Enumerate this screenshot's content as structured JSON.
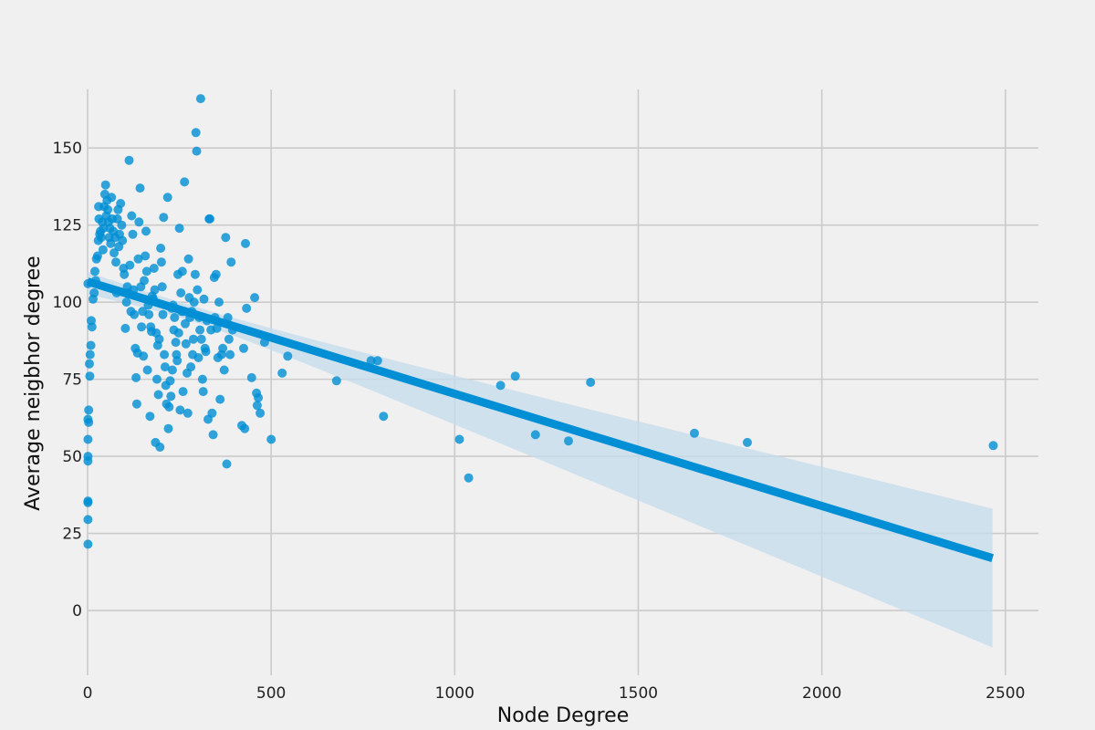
{
  "chart_data": {
    "type": "scatter",
    "title": "",
    "xlabel": "Node Degree",
    "ylabel": "Average neigbhor degree",
    "xlim": [
      0,
      2590
    ],
    "ylim": [
      -21,
      169
    ],
    "xticks": [
      0,
      500,
      1000,
      1500,
      2000,
      2500
    ],
    "yticks": [
      0,
      25,
      50,
      75,
      100,
      125,
      150
    ],
    "grid": true,
    "colors": {
      "points": "#008fd5",
      "regression_line": "#008fd5",
      "confidence_band": "#c6dced",
      "grid": "#cbcbcb",
      "background": "#f0f0f0"
    },
    "regression": {
      "x_range": [
        0,
        2465
      ],
      "intercept": 106.7,
      "slope": -0.0364,
      "ci_upper_at_end": 33,
      "ci_lower_at_end": -12
    },
    "series": [
      {
        "points": [
          [
            1,
            106
          ],
          [
            1,
            62
          ],
          [
            1,
            55.5
          ],
          [
            1,
            50
          ],
          [
            1,
            48.5
          ],
          [
            1,
            35.5
          ],
          [
            1,
            35
          ],
          [
            1,
            29.5
          ],
          [
            1,
            21.5
          ],
          [
            3,
            65
          ],
          [
            3,
            61
          ],
          [
            5,
            80
          ],
          [
            6,
            76
          ],
          [
            7,
            83
          ],
          [
            9,
            86
          ],
          [
            10,
            94
          ],
          [
            12,
            92
          ],
          [
            15,
            101
          ],
          [
            18,
            103
          ],
          [
            20,
            110
          ],
          [
            22,
            107
          ],
          [
            24,
            114
          ],
          [
            27,
            115
          ],
          [
            29,
            120
          ],
          [
            30,
            131
          ],
          [
            31,
            127
          ],
          [
            33,
            122
          ],
          [
            35,
            123
          ],
          [
            37,
            121
          ],
          [
            40,
            126
          ],
          [
            42,
            117
          ],
          [
            43,
            124
          ],
          [
            45,
            131
          ],
          [
            47,
            135
          ],
          [
            49,
            138
          ],
          [
            51,
            128
          ],
          [
            53,
            133
          ],
          [
            55,
            130
          ],
          [
            57,
            126
          ],
          [
            59,
            121
          ],
          [
            61,
            124
          ],
          [
            63,
            119
          ],
          [
            65,
            134
          ],
          [
            67,
            127
          ],
          [
            70,
            123
          ],
          [
            72,
            116
          ],
          [
            75,
            121
          ],
          [
            77,
            113
          ],
          [
            79,
            103
          ],
          [
            81,
            127
          ],
          [
            83,
            130
          ],
          [
            85,
            118
          ],
          [
            87,
            122
          ],
          [
            90,
            132
          ],
          [
            93,
            125
          ],
          [
            95,
            120
          ],
          [
            98,
            111
          ],
          [
            100,
            109
          ],
          [
            103,
            91.5
          ],
          [
            106,
            100
          ],
          [
            108,
            105
          ],
          [
            110,
            103
          ],
          [
            113,
            146
          ],
          [
            115,
            112
          ],
          [
            118,
            97
          ],
          [
            120,
            128
          ],
          [
            123,
            122
          ],
          [
            125,
            104
          ],
          [
            127,
            96
          ],
          [
            130,
            85
          ],
          [
            132,
            75.5
          ],
          [
            134,
            67
          ],
          [
            136,
            83.5
          ],
          [
            138,
            114
          ],
          [
            140,
            126
          ],
          [
            143,
            137
          ],
          [
            145,
            105
          ],
          [
            147,
            92
          ],
          [
            150,
            97
          ],
          [
            152,
            82.5
          ],
          [
            154,
            107
          ],
          [
            157,
            115
          ],
          [
            159,
            123
          ],
          [
            161,
            110
          ],
          [
            163,
            78
          ],
          [
            165,
            99
          ],
          [
            167,
            96
          ],
          [
            170,
            63
          ],
          [
            172,
            92
          ],
          [
            174,
            90.5
          ],
          [
            176,
            102
          ],
          [
            179,
            101
          ],
          [
            181,
            111
          ],
          [
            183,
            104
          ],
          [
            185,
            54.5
          ],
          [
            187,
            90
          ],
          [
            189,
            75
          ],
          [
            191,
            86
          ],
          [
            193,
            70
          ],
          [
            195,
            88
          ],
          [
            197,
            53
          ],
          [
            199,
            117.5
          ],
          [
            201,
            113
          ],
          [
            203,
            105
          ],
          [
            205,
            96
          ],
          [
            207,
            127.5
          ],
          [
            209,
            83
          ],
          [
            211,
            79
          ],
          [
            213,
            73
          ],
          [
            215,
            67
          ],
          [
            218,
            134
          ],
          [
            220,
            59
          ],
          [
            222,
            66
          ],
          [
            225,
            74.5
          ],
          [
            227,
            69.5
          ],
          [
            229,
            98
          ],
          [
            231,
            78
          ],
          [
            233,
            99
          ],
          [
            235,
            91
          ],
          [
            237,
            95
          ],
          [
            240,
            87
          ],
          [
            242,
            83
          ],
          [
            244,
            81
          ],
          [
            246,
            109
          ],
          [
            248,
            90
          ],
          [
            250,
            124
          ],
          [
            252,
            65
          ],
          [
            254,
            103
          ],
          [
            256,
            97
          ],
          [
            258,
            110
          ],
          [
            260,
            71
          ],
          [
            262,
            97
          ],
          [
            264,
            139
          ],
          [
            266,
            93
          ],
          [
            268,
            86.5
          ],
          [
            271,
            77
          ],
          [
            273,
            64
          ],
          [
            275,
            114
          ],
          [
            277,
            101.5
          ],
          [
            279,
            95
          ],
          [
            281,
            79
          ],
          [
            284,
            97
          ],
          [
            286,
            83
          ],
          [
            288,
            88
          ],
          [
            290,
            100
          ],
          [
            293,
            109
          ],
          [
            295,
            155
          ],
          [
            297,
            149
          ],
          [
            299,
            104
          ],
          [
            302,
            82
          ],
          [
            304,
            95
          ],
          [
            306,
            91
          ],
          [
            308,
            166
          ],
          [
            310,
            88
          ],
          [
            313,
            75
          ],
          [
            315,
            71
          ],
          [
            317,
            101
          ],
          [
            320,
            85
          ],
          [
            322,
            84
          ],
          [
            325,
            94
          ],
          [
            328,
            62
          ],
          [
            331,
            127
          ],
          [
            333,
            127
          ],
          [
            336,
            91
          ],
          [
            339,
            64
          ],
          [
            342,
            57
          ],
          [
            345,
            108
          ],
          [
            347,
            95
          ],
          [
            350,
            109
          ],
          [
            352,
            91.5
          ],
          [
            355,
            82
          ],
          [
            358,
            100
          ],
          [
            361,
            68.5
          ],
          [
            365,
            83
          ],
          [
            368,
            85
          ],
          [
            372,
            78
          ],
          [
            376,
            121
          ],
          [
            379,
            47.5
          ],
          [
            382,
            95
          ],
          [
            385,
            88
          ],
          [
            388,
            83
          ],
          [
            391,
            113
          ],
          [
            395,
            91
          ],
          [
            420,
            60
          ],
          [
            425,
            85
          ],
          [
            428,
            59
          ],
          [
            430,
            119
          ],
          [
            433,
            98
          ],
          [
            447,
            75.5
          ],
          [
            455,
            101.5
          ],
          [
            460,
            70.5
          ],
          [
            462,
            66.5
          ],
          [
            465,
            69
          ],
          [
            470,
            64
          ],
          [
            482,
            87
          ],
          [
            500,
            55.5
          ],
          [
            530,
            77
          ],
          [
            545,
            82.5
          ],
          [
            678,
            74.5
          ],
          [
            772,
            81
          ],
          [
            790,
            81
          ],
          [
            806,
            63
          ],
          [
            1013,
            55.5
          ],
          [
            1038,
            43
          ],
          [
            1125,
            73
          ],
          [
            1165,
            76
          ],
          [
            1220,
            57
          ],
          [
            1310,
            55
          ],
          [
            1370,
            74
          ],
          [
            1653,
            57.5
          ],
          [
            1797,
            54.5
          ],
          [
            2467,
            53.5
          ]
        ]
      }
    ]
  }
}
